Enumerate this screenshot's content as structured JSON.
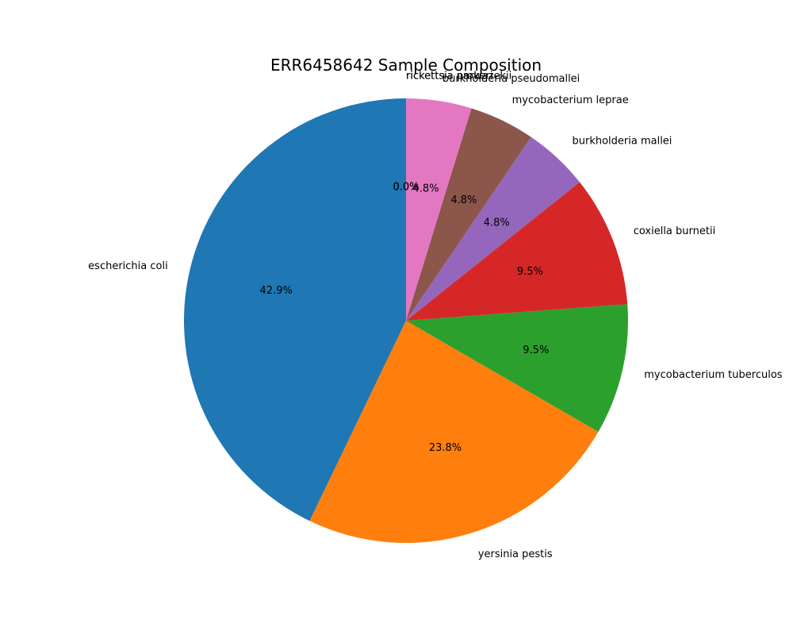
{
  "chart_data": {
    "type": "pie",
    "title": "ERR6458642 Sample Composition",
    "start_angle_deg": 90,
    "direction": "counterclockwise",
    "slices": [
      {
        "label": "escherichia coli",
        "value": 9,
        "pct_label": "42.9%",
        "color": "#1f77b4"
      },
      {
        "label": "yersinia pestis",
        "value": 5,
        "pct_label": "23.8%",
        "color": "#ff7f0e"
      },
      {
        "label": "mycobacterium tuberculos",
        "value": 2,
        "pct_label": "9.5%",
        "color": "#2ca02c"
      },
      {
        "label": "coxiella burnetii",
        "value": 2,
        "pct_label": "9.5%",
        "color": "#d62728"
      },
      {
        "label": "burkholderia mallei",
        "value": 1,
        "pct_label": "4.8%",
        "color": "#9467bd"
      },
      {
        "label": "mycobacterium leprae",
        "value": 1,
        "pct_label": "4.8%",
        "color": "#8c564b"
      },
      {
        "label": "burkholderia pseudomallei",
        "value": 1,
        "pct_label": "4.8%",
        "color": "#e377c2"
      },
      {
        "label": "rickettsia prowazekii",
        "value": 0,
        "pct_label": "0.0%",
        "color": "#7f7f7f"
      },
      {
        "label": "rickettsia parkeri",
        "value": 0,
        "pct_label": "0.0%",
        "color": "#bcbd22"
      }
    ]
  }
}
